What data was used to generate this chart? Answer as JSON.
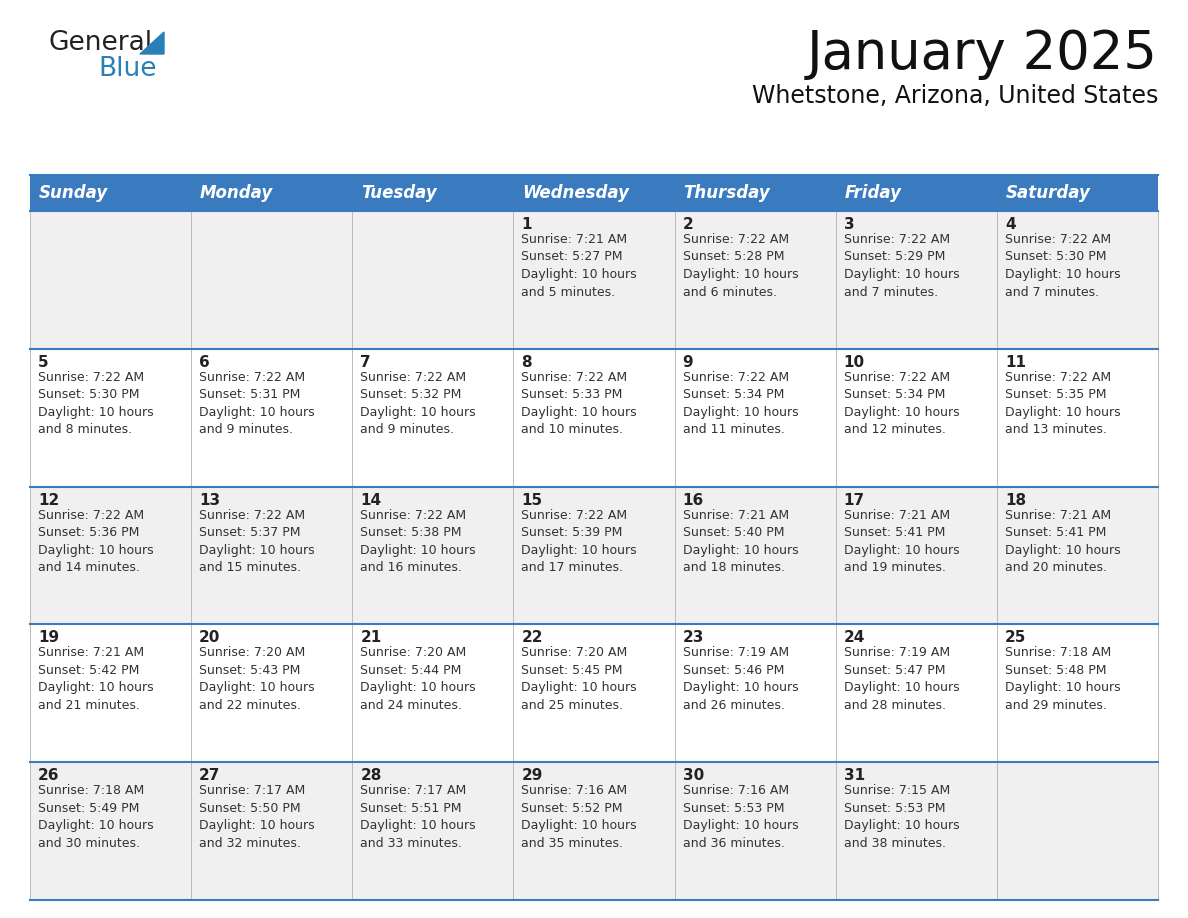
{
  "title": "January 2025",
  "subtitle": "Whetstone, Arizona, United States",
  "header_bg": "#3a7abf",
  "header_text": "#ffffff",
  "weekdays": [
    "Sunday",
    "Monday",
    "Tuesday",
    "Wednesday",
    "Thursday",
    "Friday",
    "Saturday"
  ],
  "row_bg_odd": "#f0f0f0",
  "row_bg_even": "#ffffff",
  "cell_text_color": "#333333",
  "day_number_color": "#222222",
  "grid_line_color": "#3a7abf",
  "logo_general_color": "#222222",
  "logo_blue_color": "#2980b9",
  "logo_triangle_color": "#2980b9",
  "title_fontsize": 38,
  "subtitle_fontsize": 17,
  "header_fontsize": 12,
  "day_num_fontsize": 11,
  "cell_text_fontsize": 9,
  "fig_width": 11.88,
  "fig_height": 9.18,
  "calendar": [
    [
      {
        "day": "",
        "info": ""
      },
      {
        "day": "",
        "info": ""
      },
      {
        "day": "",
        "info": ""
      },
      {
        "day": "1",
        "info": "Sunrise: 7:21 AM\nSunset: 5:27 PM\nDaylight: 10 hours\nand 5 minutes."
      },
      {
        "day": "2",
        "info": "Sunrise: 7:22 AM\nSunset: 5:28 PM\nDaylight: 10 hours\nand 6 minutes."
      },
      {
        "day": "3",
        "info": "Sunrise: 7:22 AM\nSunset: 5:29 PM\nDaylight: 10 hours\nand 7 minutes."
      },
      {
        "day": "4",
        "info": "Sunrise: 7:22 AM\nSunset: 5:30 PM\nDaylight: 10 hours\nand 7 minutes."
      }
    ],
    [
      {
        "day": "5",
        "info": "Sunrise: 7:22 AM\nSunset: 5:30 PM\nDaylight: 10 hours\nand 8 minutes."
      },
      {
        "day": "6",
        "info": "Sunrise: 7:22 AM\nSunset: 5:31 PM\nDaylight: 10 hours\nand 9 minutes."
      },
      {
        "day": "7",
        "info": "Sunrise: 7:22 AM\nSunset: 5:32 PM\nDaylight: 10 hours\nand 9 minutes."
      },
      {
        "day": "8",
        "info": "Sunrise: 7:22 AM\nSunset: 5:33 PM\nDaylight: 10 hours\nand 10 minutes."
      },
      {
        "day": "9",
        "info": "Sunrise: 7:22 AM\nSunset: 5:34 PM\nDaylight: 10 hours\nand 11 minutes."
      },
      {
        "day": "10",
        "info": "Sunrise: 7:22 AM\nSunset: 5:34 PM\nDaylight: 10 hours\nand 12 minutes."
      },
      {
        "day": "11",
        "info": "Sunrise: 7:22 AM\nSunset: 5:35 PM\nDaylight: 10 hours\nand 13 minutes."
      }
    ],
    [
      {
        "day": "12",
        "info": "Sunrise: 7:22 AM\nSunset: 5:36 PM\nDaylight: 10 hours\nand 14 minutes."
      },
      {
        "day": "13",
        "info": "Sunrise: 7:22 AM\nSunset: 5:37 PM\nDaylight: 10 hours\nand 15 minutes."
      },
      {
        "day": "14",
        "info": "Sunrise: 7:22 AM\nSunset: 5:38 PM\nDaylight: 10 hours\nand 16 minutes."
      },
      {
        "day": "15",
        "info": "Sunrise: 7:22 AM\nSunset: 5:39 PM\nDaylight: 10 hours\nand 17 minutes."
      },
      {
        "day": "16",
        "info": "Sunrise: 7:21 AM\nSunset: 5:40 PM\nDaylight: 10 hours\nand 18 minutes."
      },
      {
        "day": "17",
        "info": "Sunrise: 7:21 AM\nSunset: 5:41 PM\nDaylight: 10 hours\nand 19 minutes."
      },
      {
        "day": "18",
        "info": "Sunrise: 7:21 AM\nSunset: 5:41 PM\nDaylight: 10 hours\nand 20 minutes."
      }
    ],
    [
      {
        "day": "19",
        "info": "Sunrise: 7:21 AM\nSunset: 5:42 PM\nDaylight: 10 hours\nand 21 minutes."
      },
      {
        "day": "20",
        "info": "Sunrise: 7:20 AM\nSunset: 5:43 PM\nDaylight: 10 hours\nand 22 minutes."
      },
      {
        "day": "21",
        "info": "Sunrise: 7:20 AM\nSunset: 5:44 PM\nDaylight: 10 hours\nand 24 minutes."
      },
      {
        "day": "22",
        "info": "Sunrise: 7:20 AM\nSunset: 5:45 PM\nDaylight: 10 hours\nand 25 minutes."
      },
      {
        "day": "23",
        "info": "Sunrise: 7:19 AM\nSunset: 5:46 PM\nDaylight: 10 hours\nand 26 minutes."
      },
      {
        "day": "24",
        "info": "Sunrise: 7:19 AM\nSunset: 5:47 PM\nDaylight: 10 hours\nand 28 minutes."
      },
      {
        "day": "25",
        "info": "Sunrise: 7:18 AM\nSunset: 5:48 PM\nDaylight: 10 hours\nand 29 minutes."
      }
    ],
    [
      {
        "day": "26",
        "info": "Sunrise: 7:18 AM\nSunset: 5:49 PM\nDaylight: 10 hours\nand 30 minutes."
      },
      {
        "day": "27",
        "info": "Sunrise: 7:17 AM\nSunset: 5:50 PM\nDaylight: 10 hours\nand 32 minutes."
      },
      {
        "day": "28",
        "info": "Sunrise: 7:17 AM\nSunset: 5:51 PM\nDaylight: 10 hours\nand 33 minutes."
      },
      {
        "day": "29",
        "info": "Sunrise: 7:16 AM\nSunset: 5:52 PM\nDaylight: 10 hours\nand 35 minutes."
      },
      {
        "day": "30",
        "info": "Sunrise: 7:16 AM\nSunset: 5:53 PM\nDaylight: 10 hours\nand 36 minutes."
      },
      {
        "day": "31",
        "info": "Sunrise: 7:15 AM\nSunset: 5:53 PM\nDaylight: 10 hours\nand 38 minutes."
      },
      {
        "day": "",
        "info": ""
      }
    ]
  ]
}
